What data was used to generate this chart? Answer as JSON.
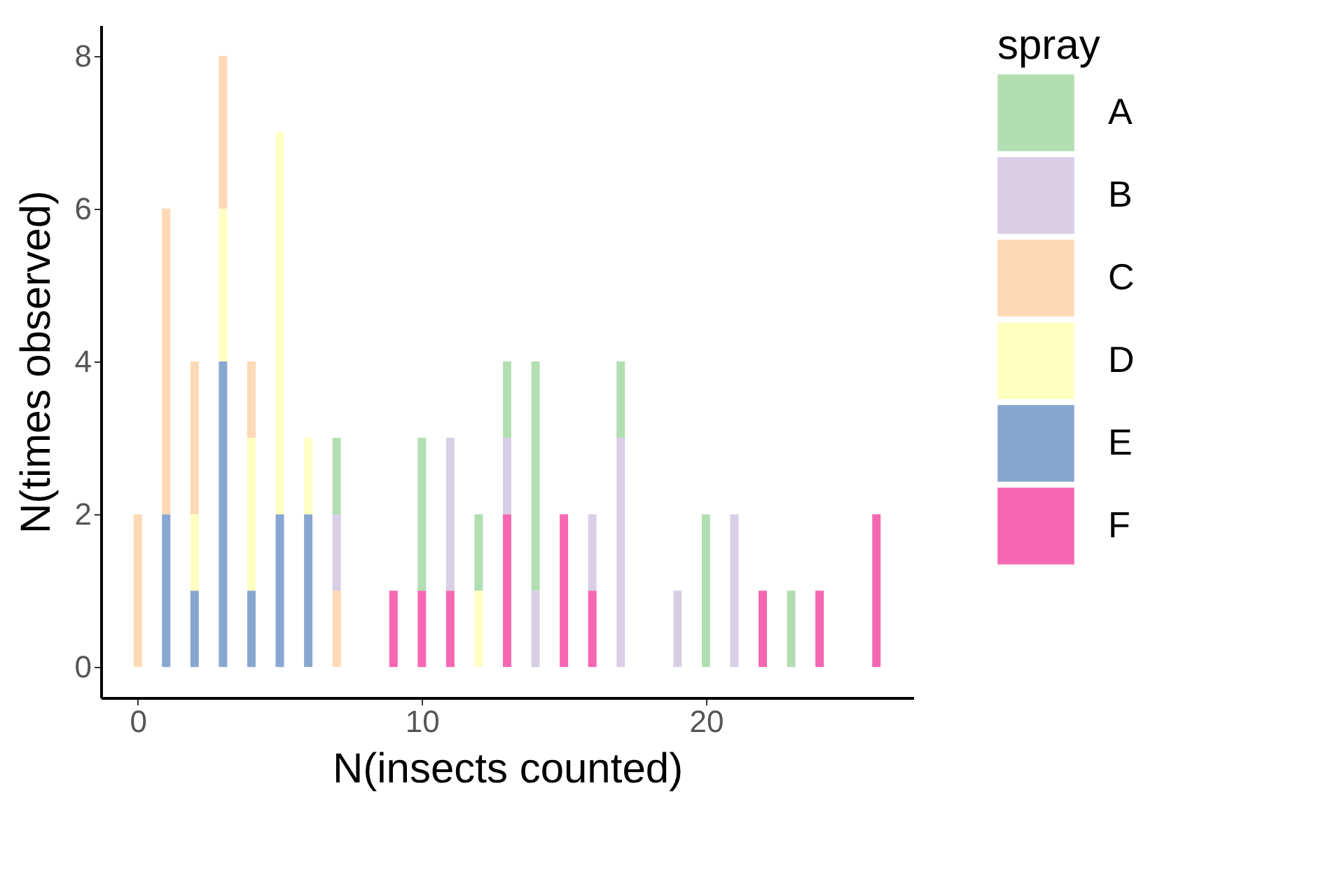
{
  "chart_data": {
    "type": "bar",
    "stacked": true,
    "xlabel": "N(insects counted)",
    "ylabel": "N(times observed)",
    "legend_title": "spray",
    "legend": "right",
    "grid": false,
    "x": [
      0,
      1,
      2,
      3,
      4,
      5,
      6,
      7,
      9,
      10,
      11,
      12,
      13,
      14,
      15,
      16,
      17,
      19,
      20,
      21,
      22,
      23,
      24,
      26
    ],
    "xlim": [
      -1.3,
      27.3
    ],
    "xticks": [
      0,
      10,
      20
    ],
    "ylim": [
      -0.4,
      8.4
    ],
    "yticks": [
      0,
      2,
      4,
      6,
      8
    ],
    "series": [
      {
        "name": "F",
        "color": "#f0027f",
        "values": [
          null,
          null,
          null,
          null,
          null,
          null,
          null,
          null,
          1,
          1,
          1,
          null,
          2,
          null,
          2,
          1,
          null,
          null,
          null,
          null,
          1,
          null,
          1,
          2
        ]
      },
      {
        "name": "E",
        "color": "#386cb0",
        "values": [
          null,
          2,
          1,
          4,
          1,
          2,
          2,
          null,
          null,
          null,
          null,
          null,
          null,
          null,
          null,
          null,
          null,
          null,
          null,
          null,
          null,
          null,
          null,
          null
        ]
      },
      {
        "name": "D",
        "color": "#ffff99",
        "values": [
          null,
          null,
          1,
          2,
          2,
          5,
          1,
          null,
          null,
          null,
          null,
          1,
          null,
          null,
          null,
          null,
          null,
          null,
          null,
          null,
          null,
          null,
          null,
          null
        ]
      },
      {
        "name": "C",
        "color": "#fdc086",
        "values": [
          2,
          4,
          2,
          2,
          1,
          null,
          null,
          1,
          null,
          null,
          null,
          null,
          null,
          null,
          null,
          null,
          null,
          null,
          null,
          null,
          null,
          null,
          null,
          null
        ]
      },
      {
        "name": "B",
        "color": "#beaed4",
        "values": [
          null,
          null,
          null,
          null,
          null,
          null,
          null,
          1,
          null,
          null,
          2,
          null,
          1,
          1,
          null,
          1,
          3,
          1,
          null,
          2,
          null,
          null,
          null,
          null
        ]
      },
      {
        "name": "A",
        "color": "#7fc97f",
        "values": [
          null,
          null,
          null,
          null,
          null,
          null,
          null,
          1,
          null,
          2,
          null,
          1,
          1,
          3,
          null,
          null,
          1,
          null,
          2,
          null,
          null,
          1,
          null,
          null
        ]
      }
    ]
  }
}
